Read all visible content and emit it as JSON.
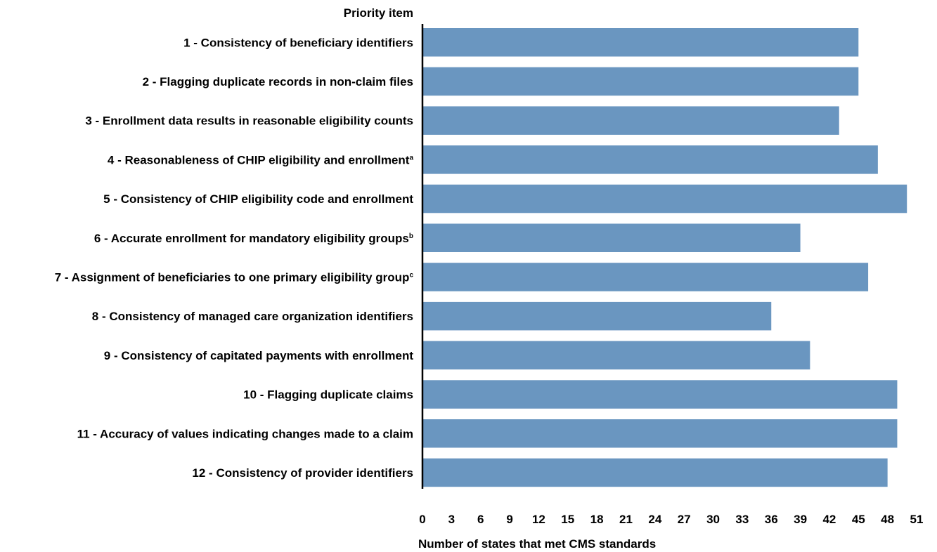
{
  "chart_data": {
    "type": "bar",
    "orientation": "horizontal",
    "category_axis_title": "Priority item",
    "xlabel": "Number of states that met CMS standards",
    "categories": [
      {
        "text": "1 - Consistency of beneficiary identifiers",
        "sup": ""
      },
      {
        "text": "2 - Flagging duplicate records in non-claim files",
        "sup": ""
      },
      {
        "text": "3 - Enrollment data results in reasonable eligibility counts",
        "sup": ""
      },
      {
        "text": "4 - Reasonableness of CHIP eligibility and enrollment",
        "sup": "a"
      },
      {
        "text": "5 - Consistency of CHIP eligibility code and enrollment",
        "sup": ""
      },
      {
        "text": "6 - Accurate enrollment for mandatory eligibility groups",
        "sup": "b"
      },
      {
        "text": "7 - Assignment of beneficiaries to one primary eligibility group",
        "sup": "c"
      },
      {
        "text": "8 - Consistency of managed care organization identifiers",
        "sup": ""
      },
      {
        "text": "9 - Consistency of capitated payments with enrollment",
        "sup": ""
      },
      {
        "text": "10 - Flagging duplicate claims",
        "sup": ""
      },
      {
        "text": "11 - Accuracy of values indicating changes made to a claim",
        "sup": ""
      },
      {
        "text": "12 - Consistency of provider identifiers",
        "sup": ""
      }
    ],
    "values": [
      45,
      45,
      43,
      47,
      50,
      39,
      46,
      36,
      40,
      49,
      49,
      48
    ],
    "xlim": [
      0,
      51
    ],
    "xticks": [
      0,
      3,
      6,
      9,
      12,
      15,
      18,
      21,
      24,
      27,
      30,
      33,
      36,
      39,
      42,
      45,
      48,
      51
    ],
    "grid": false,
    "bar_color": "#6a96c0"
  }
}
